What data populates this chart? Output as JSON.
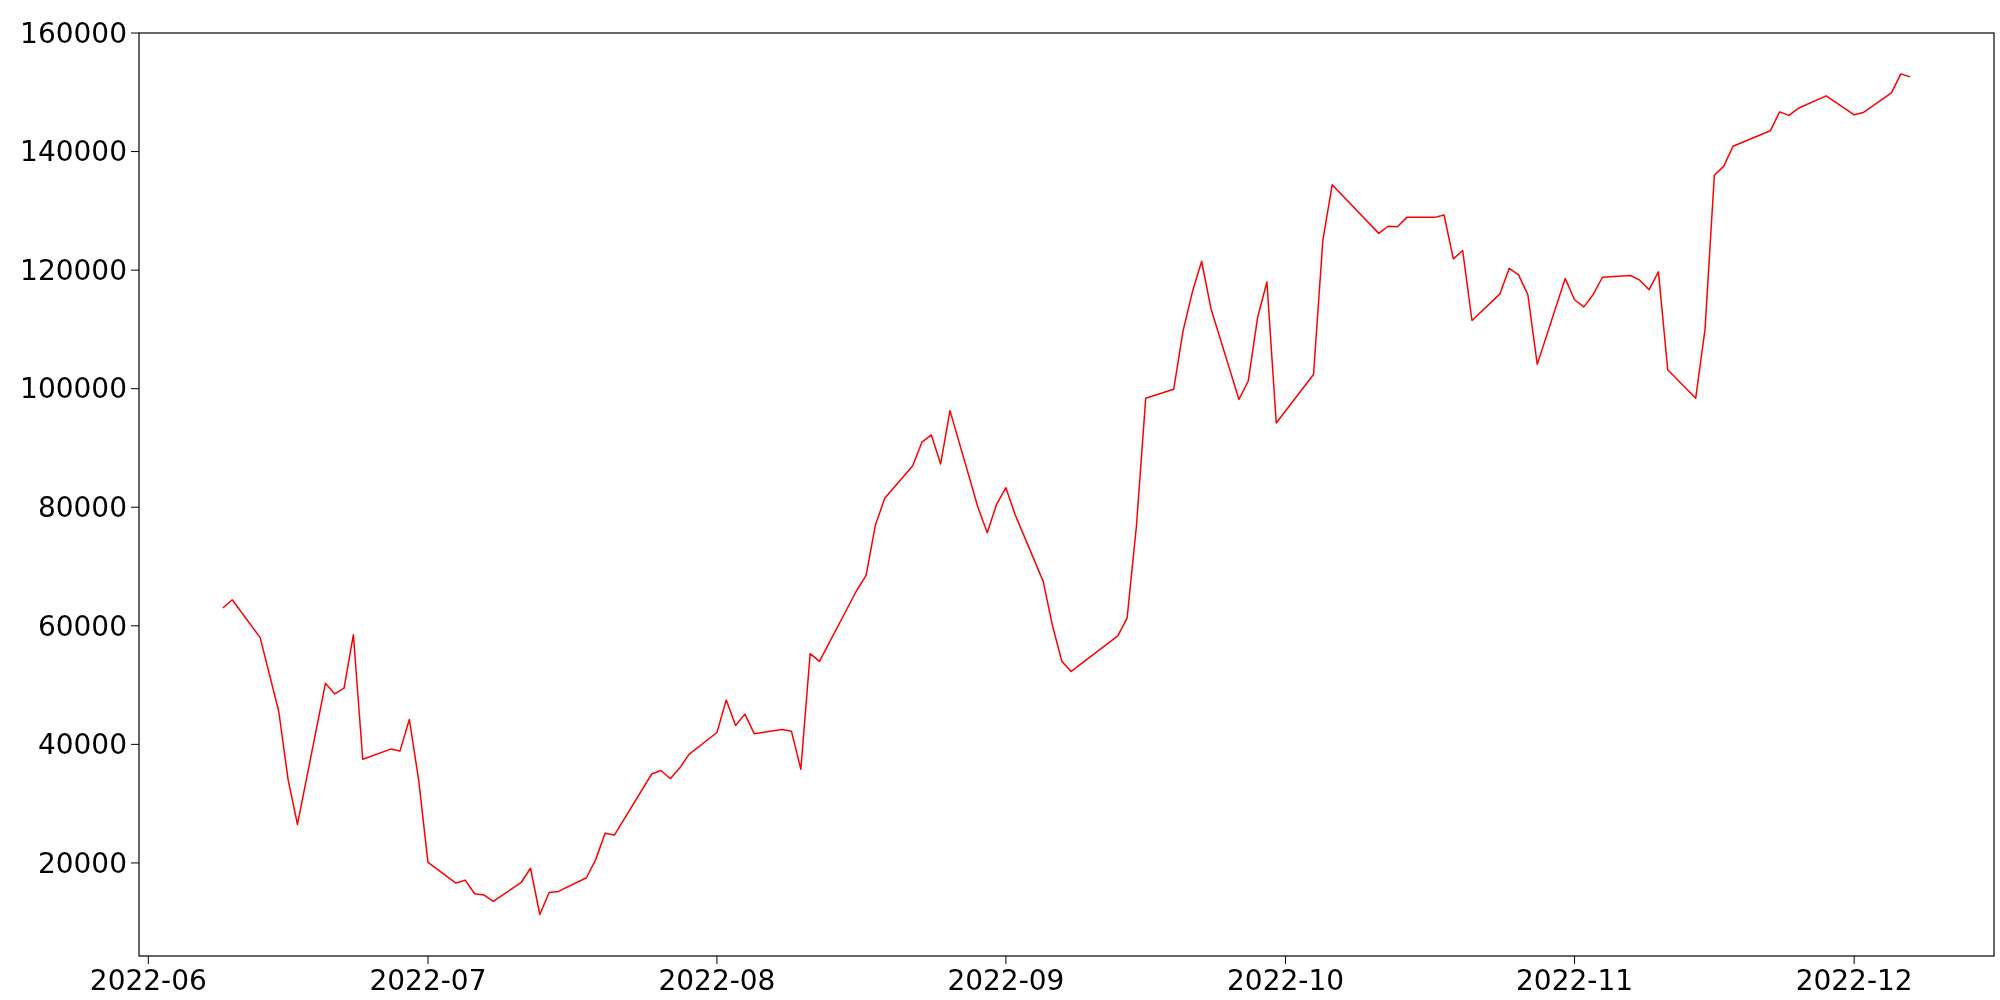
{
  "chart_data": {
    "type": "line",
    "x": [
      "2022-06-09",
      "2022-06-10",
      "2022-06-13",
      "2022-06-15",
      "2022-06-16",
      "2022-06-17",
      "2022-06-20",
      "2022-06-21",
      "2022-06-22",
      "2022-06-23",
      "2022-06-24",
      "2022-06-27",
      "2022-06-28",
      "2022-06-29",
      "2022-06-30",
      "2022-07-01",
      "2022-07-04",
      "2022-07-05",
      "2022-07-06",
      "2022-07-07",
      "2022-07-08",
      "2022-07-11",
      "2022-07-12",
      "2022-07-13",
      "2022-07-14",
      "2022-07-15",
      "2022-07-18",
      "2022-07-19",
      "2022-07-20",
      "2022-07-21",
      "2022-07-25",
      "2022-07-26",
      "2022-07-27",
      "2022-07-28",
      "2022-07-29",
      "2022-08-01",
      "2022-08-02",
      "2022-08-03",
      "2022-08-04",
      "2022-08-05",
      "2022-08-08",
      "2022-08-09",
      "2022-08-10",
      "2022-08-11",
      "2022-08-12",
      "2022-08-16",
      "2022-08-17",
      "2022-08-18",
      "2022-08-19",
      "2022-08-22",
      "2022-08-23",
      "2022-08-24",
      "2022-08-25",
      "2022-08-26",
      "2022-08-29",
      "2022-08-30",
      "2022-08-31",
      "2022-09-01",
      "2022-09-02",
      "2022-09-05",
      "2022-09-06",
      "2022-09-07",
      "2022-09-08",
      "2022-09-13",
      "2022-09-14",
      "2022-09-15",
      "2022-09-16",
      "2022-09-19",
      "2022-09-20",
      "2022-09-21",
      "2022-09-22",
      "2022-09-23",
      "2022-09-26",
      "2022-09-27",
      "2022-09-28",
      "2022-09-29",
      "2022-09-30",
      "2022-10-04",
      "2022-10-05",
      "2022-10-06",
      "2022-10-11",
      "2022-10-12",
      "2022-10-13",
      "2022-10-14",
      "2022-10-17",
      "2022-10-18",
      "2022-10-19",
      "2022-10-20",
      "2022-10-21",
      "2022-10-24",
      "2022-10-25",
      "2022-10-26",
      "2022-10-27",
      "2022-10-28",
      "2022-10-31",
      "2022-11-01",
      "2022-11-02",
      "2022-11-03",
      "2022-11-04",
      "2022-11-07",
      "2022-11-08",
      "2022-11-09",
      "2022-11-10",
      "2022-11-11",
      "2022-11-14",
      "2022-11-15",
      "2022-11-16",
      "2022-11-17",
      "2022-11-18",
      "2022-11-22",
      "2022-11-23",
      "2022-11-24",
      "2022-11-25",
      "2022-11-28",
      "2022-12-01",
      "2022-12-02",
      "2022-12-05",
      "2022-12-06",
      "2022-12-07"
    ],
    "series": [
      {
        "color": "#ff0000",
        "values": [
          63000,
          64400,
          58000,
          45500,
          34000,
          26500,
          50300,
          48500,
          49500,
          58500,
          37500,
          39200,
          38900,
          44200,
          34000,
          20100,
          16600,
          17100,
          14800,
          14600,
          13500,
          16700,
          19100,
          11300,
          15000,
          15200,
          17500,
          20600,
          25000,
          24700,
          35000,
          35600,
          34200,
          36000,
          38300,
          42000,
          47500,
          43200,
          45100,
          41800,
          42500,
          42200,
          35800,
          55300,
          54000,
          66000,
          68500,
          77000,
          81500,
          87000,
          91000,
          92200,
          87300,
          96300,
          80000,
          75700,
          80500,
          83300,
          78700,
          67500,
          60000,
          54000,
          52300,
          58300,
          61300,
          76800,
          98400,
          99900,
          109700,
          116300,
          121500,
          113500,
          98200,
          101300,
          112000,
          118000,
          94200,
          102400,
          125000,
          134400,
          126200,
          127400,
          127300,
          128900,
          128900,
          129300,
          121900,
          123300,
          111500,
          116000,
          120300,
          119200,
          115800,
          104100,
          118600,
          115000,
          113800,
          115900,
          118800,
          119100,
          118300,
          116700,
          119700,
          103200,
          98400,
          110000,
          136000,
          137500,
          140900,
          143500,
          146700,
          146100,
          147300,
          149400,
          146200,
          146600,
          149900,
          153100,
          152600
        ]
      }
    ],
    "xlim": [
      "2022-05-31",
      "2022-12-16"
    ],
    "xticks": [
      "2022-06",
      "2022-07",
      "2022-08",
      "2022-09",
      "2022-10",
      "2022-11",
      "2022-12"
    ],
    "ylim": [
      4300,
      160000
    ],
    "yticks": [
      20000,
      40000,
      60000,
      80000,
      100000,
      120000,
      140000,
      160000
    ],
    "grid": false,
    "marker": "none",
    "line_style": "solid"
  }
}
